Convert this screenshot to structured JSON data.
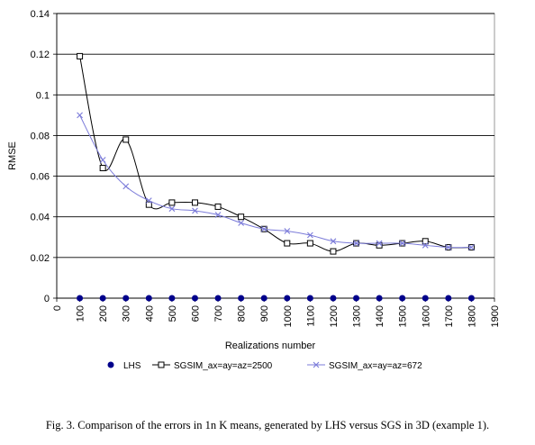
{
  "chart_data": {
    "type": "line",
    "title": "",
    "xlabel": "Realizations number",
    "ylabel": "RMSE",
    "xlim": [
      0,
      1900
    ],
    "ylim": [
      0,
      0.14
    ],
    "xticks": [
      0,
      100,
      200,
      300,
      400,
      500,
      600,
      700,
      800,
      900,
      1000,
      1100,
      1200,
      1300,
      1400,
      1500,
      1600,
      1700,
      1800,
      1900
    ],
    "xtick_labels": [
      "0",
      "100",
      "200",
      "300",
      "400",
      "500",
      "600",
      "700",
      "800",
      "900",
      "1000",
      "1100",
      "1200",
      "1300",
      "1400",
      "1500",
      "1600",
      "1700",
      "1800",
      "1900"
    ],
    "yticks": [
      0,
      0.02,
      0.04,
      0.06,
      0.08,
      0.1,
      0.12,
      0.14
    ],
    "ytick_labels": [
      "0",
      "0.02",
      "0.04",
      "0.06",
      "0.08",
      "0.1",
      "0.12",
      "0.14"
    ],
    "grid": "horizontal",
    "legend_position": "bottom",
    "x": [
      100,
      200,
      300,
      400,
      500,
      600,
      700,
      800,
      900,
      1000,
      1100,
      1200,
      1300,
      1400,
      1500,
      1600,
      1700,
      1800
    ],
    "series": [
      {
        "name": "LHS",
        "marker": "filled-circle",
        "color": "#00008b",
        "values": [
          0,
          0,
          0,
          0,
          0,
          0,
          0,
          0,
          0,
          0,
          0,
          0,
          0,
          0,
          0,
          0,
          0,
          0
        ]
      },
      {
        "name": "SGSIM_ax=ay=az=2500",
        "marker": "open-square",
        "color": "#000000",
        "values": [
          0.119,
          0.064,
          0.078,
          0.046,
          0.047,
          0.047,
          0.045,
          0.04,
          0.034,
          0.027,
          0.027,
          0.023,
          0.027,
          0.026,
          0.027,
          0.028,
          0.025,
          0.025
        ]
      },
      {
        "name": "SGSIM_ax=ay=az=672",
        "marker": "cross",
        "color": "#7b7bd9",
        "values": [
          0.09,
          0.068,
          0.055,
          0.048,
          0.044,
          0.043,
          0.041,
          0.037,
          0.034,
          0.033,
          0.031,
          0.028,
          0.027,
          0.027,
          0.027,
          0.026,
          0.025,
          0.025
        ]
      }
    ]
  },
  "caption": "Fig. 3. Comparison of the errors in 1n K means, generated by LHS versus SGS in 3D (example 1)."
}
